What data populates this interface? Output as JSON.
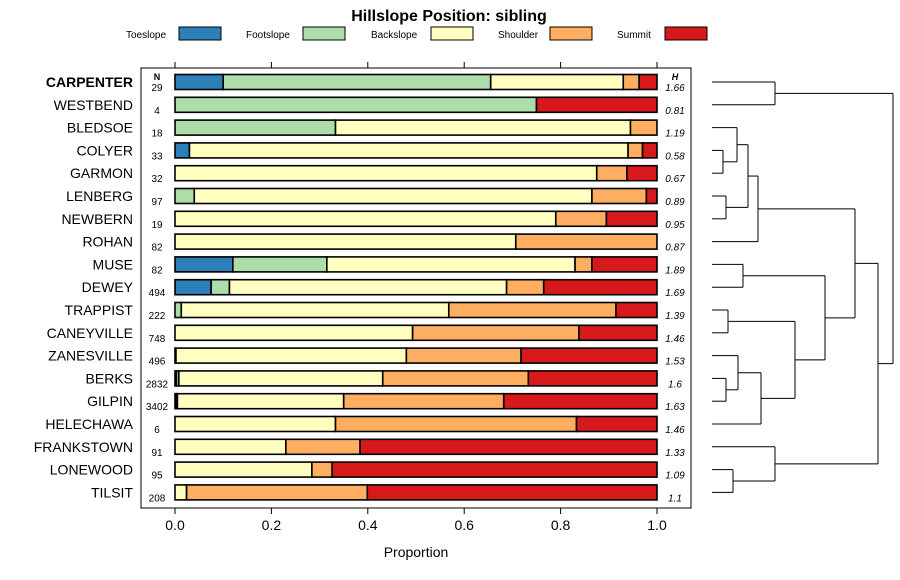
{
  "chart_data": {
    "type": "bar",
    "subtype": "stacked-horizontal-proportion",
    "title": "Hillslope Position: sibling",
    "xlabel": "Proportion",
    "ylabel": "",
    "xlim": [
      0,
      1
    ],
    "x_ticks": [
      "0.0",
      "0.2",
      "0.4",
      "0.6",
      "0.8",
      "1.0"
    ],
    "n_header": "N",
    "h_header": "H",
    "legend_position": "top",
    "legend": [
      {
        "name": "Toeslope",
        "color": "#2c7fb8"
      },
      {
        "name": "Footslope",
        "color": "#addda9"
      },
      {
        "name": "Backslope",
        "color": "#ffffc0"
      },
      {
        "name": "Shoulder",
        "color": "#fdae61"
      },
      {
        "name": "Summit",
        "color": "#d7191c"
      }
    ],
    "rows": [
      {
        "name": "CARPENTER",
        "bold": true,
        "n": "29",
        "h": "1.66",
        "values": [
          0.1,
          0.555,
          0.275,
          0.033,
          0.037
        ]
      },
      {
        "name": "WESTBEND",
        "n": "4",
        "h": "0.81",
        "values": [
          0,
          0.75,
          0,
          0,
          0.25
        ]
      },
      {
        "name": "BLEDSOE",
        "n": "18",
        "h": "1.19",
        "values": [
          0,
          0.333,
          0.612,
          0.055,
          0
        ]
      },
      {
        "name": "COLYER",
        "n": "33",
        "h": "0.58",
        "values": [
          0.03,
          0,
          0.91,
          0.03,
          0.03
        ]
      },
      {
        "name": "GARMON",
        "n": "32",
        "h": "0.67",
        "values": [
          0,
          0,
          0.875,
          0.0625,
          0.0625
        ]
      },
      {
        "name": "LENBERG",
        "n": "97",
        "h": "0.89",
        "values": [
          0,
          0.04,
          0.825,
          0.113,
          0.022
        ]
      },
      {
        "name": "NEWBERN",
        "n": "19",
        "h": "0.95",
        "values": [
          0,
          0,
          0.79,
          0.105,
          0.105
        ]
      },
      {
        "name": "ROHAN",
        "n": "82",
        "h": "0.87",
        "values": [
          0,
          0,
          0.707,
          0.293,
          0
        ]
      },
      {
        "name": "MUSE",
        "n": "82",
        "h": "1.89",
        "values": [
          0.12,
          0.195,
          0.515,
          0.035,
          0.135
        ]
      },
      {
        "name": "DEWEY",
        "n": "494",
        "h": "1.69",
        "values": [
          0.075,
          0.038,
          0.575,
          0.077,
          0.235
        ]
      },
      {
        "name": "TRAPPIST",
        "n": "222",
        "h": "1.39",
        "values": [
          0,
          0.013,
          0.555,
          0.347,
          0.085
        ]
      },
      {
        "name": "CANEYVILLE",
        "n": "748",
        "h": "1.46",
        "values": [
          0,
          0,
          0.493,
          0.345,
          0.162
        ]
      },
      {
        "name": "ZANESVILLE",
        "n": "496",
        "h": "1.53",
        "values": [
          0.002,
          0,
          0.478,
          0.238,
          0.282
        ]
      },
      {
        "name": "BERKS",
        "n": "2832",
        "h": "1.6",
        "values": [
          0.003,
          0.005,
          0.423,
          0.302,
          0.267
        ]
      },
      {
        "name": "GILPIN",
        "n": "3402",
        "h": "1.63",
        "values": [
          0.002,
          0.003,
          0.345,
          0.332,
          0.318
        ]
      },
      {
        "name": "HELECHAWA",
        "n": "6",
        "h": "1.46",
        "values": [
          0,
          0,
          0.333,
          0.5,
          0.167
        ]
      },
      {
        "name": "FRANKSTOWN",
        "n": "91",
        "h": "1.33",
        "values": [
          0,
          0,
          0.23,
          0.154,
          0.616
        ]
      },
      {
        "name": "LONEWOOD",
        "n": "95",
        "h": "1.09",
        "values": [
          0,
          0,
          0.284,
          0.042,
          0.674
        ]
      },
      {
        "name": "TILSIT",
        "n": "208",
        "h": "1.1",
        "values": [
          0,
          0,
          0.024,
          0.375,
          0.601
        ]
      }
    ]
  }
}
